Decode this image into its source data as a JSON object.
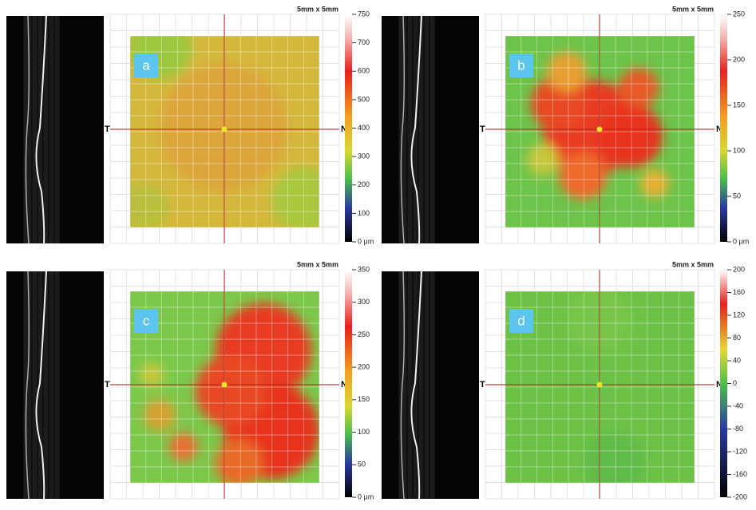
{
  "panels": [
    {
      "label": "a",
      "scale": "5mm x 5mm",
      "temporal": "T",
      "nasal": "N",
      "colorbar": [
        "750",
        "700",
        "600",
        "500",
        "400",
        "300",
        "200",
        "100",
        "0 µm"
      ]
    },
    {
      "label": "b",
      "scale": "5mm x 5mm",
      "temporal": "T",
      "nasal": "N",
      "colorbar": [
        "250",
        "200",
        "150",
        "100",
        "50",
        "0 µm"
      ]
    },
    {
      "label": "c",
      "scale": "5mm x 5mm",
      "temporal": "T",
      "nasal": "N",
      "colorbar": [
        "350",
        "300",
        "250",
        "200",
        "150",
        "100",
        "50",
        "0 µm"
      ]
    },
    {
      "label": "d",
      "scale": "5mm x 5mm",
      "temporal": "T",
      "nasal": "N",
      "colorbar": [
        "200",
        "160",
        "120",
        "80",
        "40",
        "0",
        "-40",
        "-80",
        "-120",
        "-160",
        "-200"
      ]
    }
  ]
}
